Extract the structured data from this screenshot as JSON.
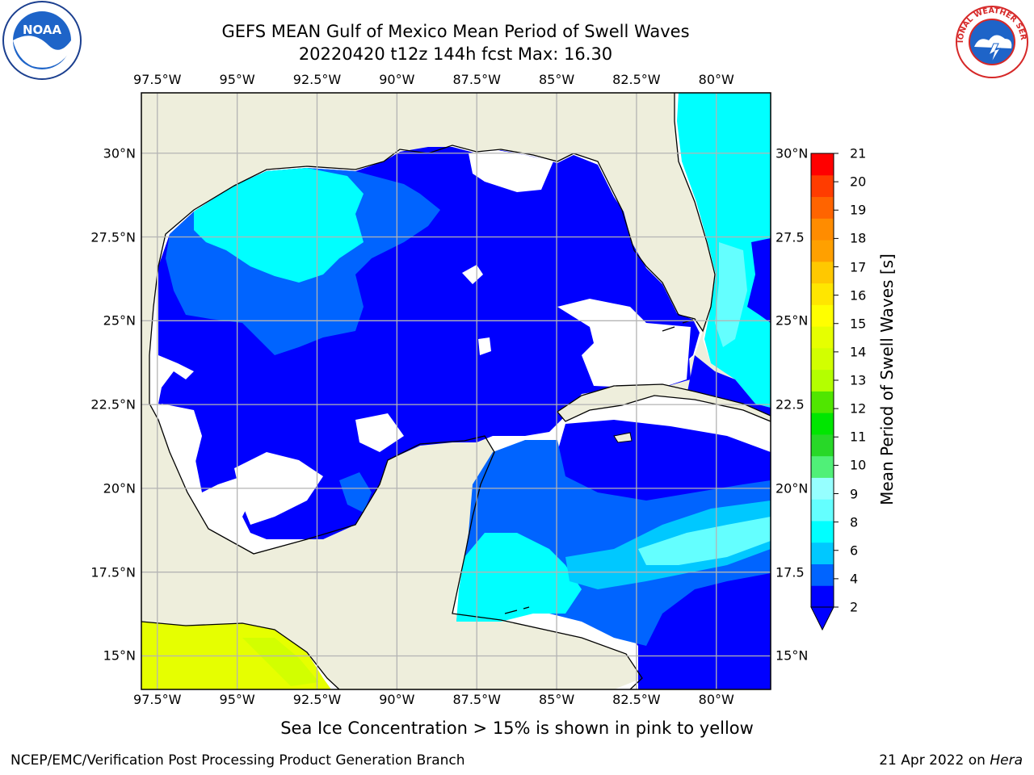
{
  "title": {
    "line1": "GEFS MEAN Gulf of Mexico Mean Period of Swell Waves",
    "line2": "20220420 t12z 144h fcst   Max: 16.30"
  },
  "map": {
    "lon_labels": [
      "97.5°W",
      "95°W",
      "92.5°W",
      "90°W",
      "87.5°W",
      "85°W",
      "82.5°W",
      "80°W"
    ],
    "lat_labels": [
      "30°N",
      "27.5°N",
      "25°N",
      "22.5°N",
      "20°N",
      "17.5°N",
      "15°N"
    ],
    "lat_labels_right": [
      "30°N",
      "27.5",
      "25°N",
      "22.5",
      "20°N",
      "17.5",
      "15°N"
    ],
    "extent": {
      "lon": [
        -98,
        -78.3
      ],
      "lat": [
        14,
        31.8
      ]
    },
    "colors": {
      "land": "#eeeedc",
      "no_data": "#ffffff",
      "grid": "#b4b4b4"
    }
  },
  "colorbar": {
    "label": "Mean Period of Swell Waves [s]",
    "ticks": [
      "21",
      "20",
      "19",
      "18",
      "17",
      "16",
      "15",
      "14",
      "13",
      "12",
      "11",
      "10",
      "9",
      "8",
      "6",
      "4",
      "2"
    ],
    "colors": [
      "#0000ff",
      "#0064ff",
      "#00c8ff",
      "#00ffff",
      "#64ffff",
      "#96ffff",
      "#50f078",
      "#28d828",
      "#00e600",
      "#50e600",
      "#b4ff00",
      "#d2ff00",
      "#e6ff00",
      "#ffff00",
      "#ffe600",
      "#ffc800",
      "#ffa000",
      "#ff8c00",
      "#ff6400",
      "#ff3c00",
      "#ff0000"
    ]
  },
  "logos": {
    "noaa_text": "NOAA",
    "nws_text": "NATIONAL WEATHER SERVICE"
  },
  "note": "Sea Ice Concentration > 15% is shown in pink to yellow",
  "footer": {
    "left": "NCEP/EMC/Verification Post Processing Product Generation Branch",
    "date": "21 Apr 2022 on ",
    "system": "Hera"
  }
}
